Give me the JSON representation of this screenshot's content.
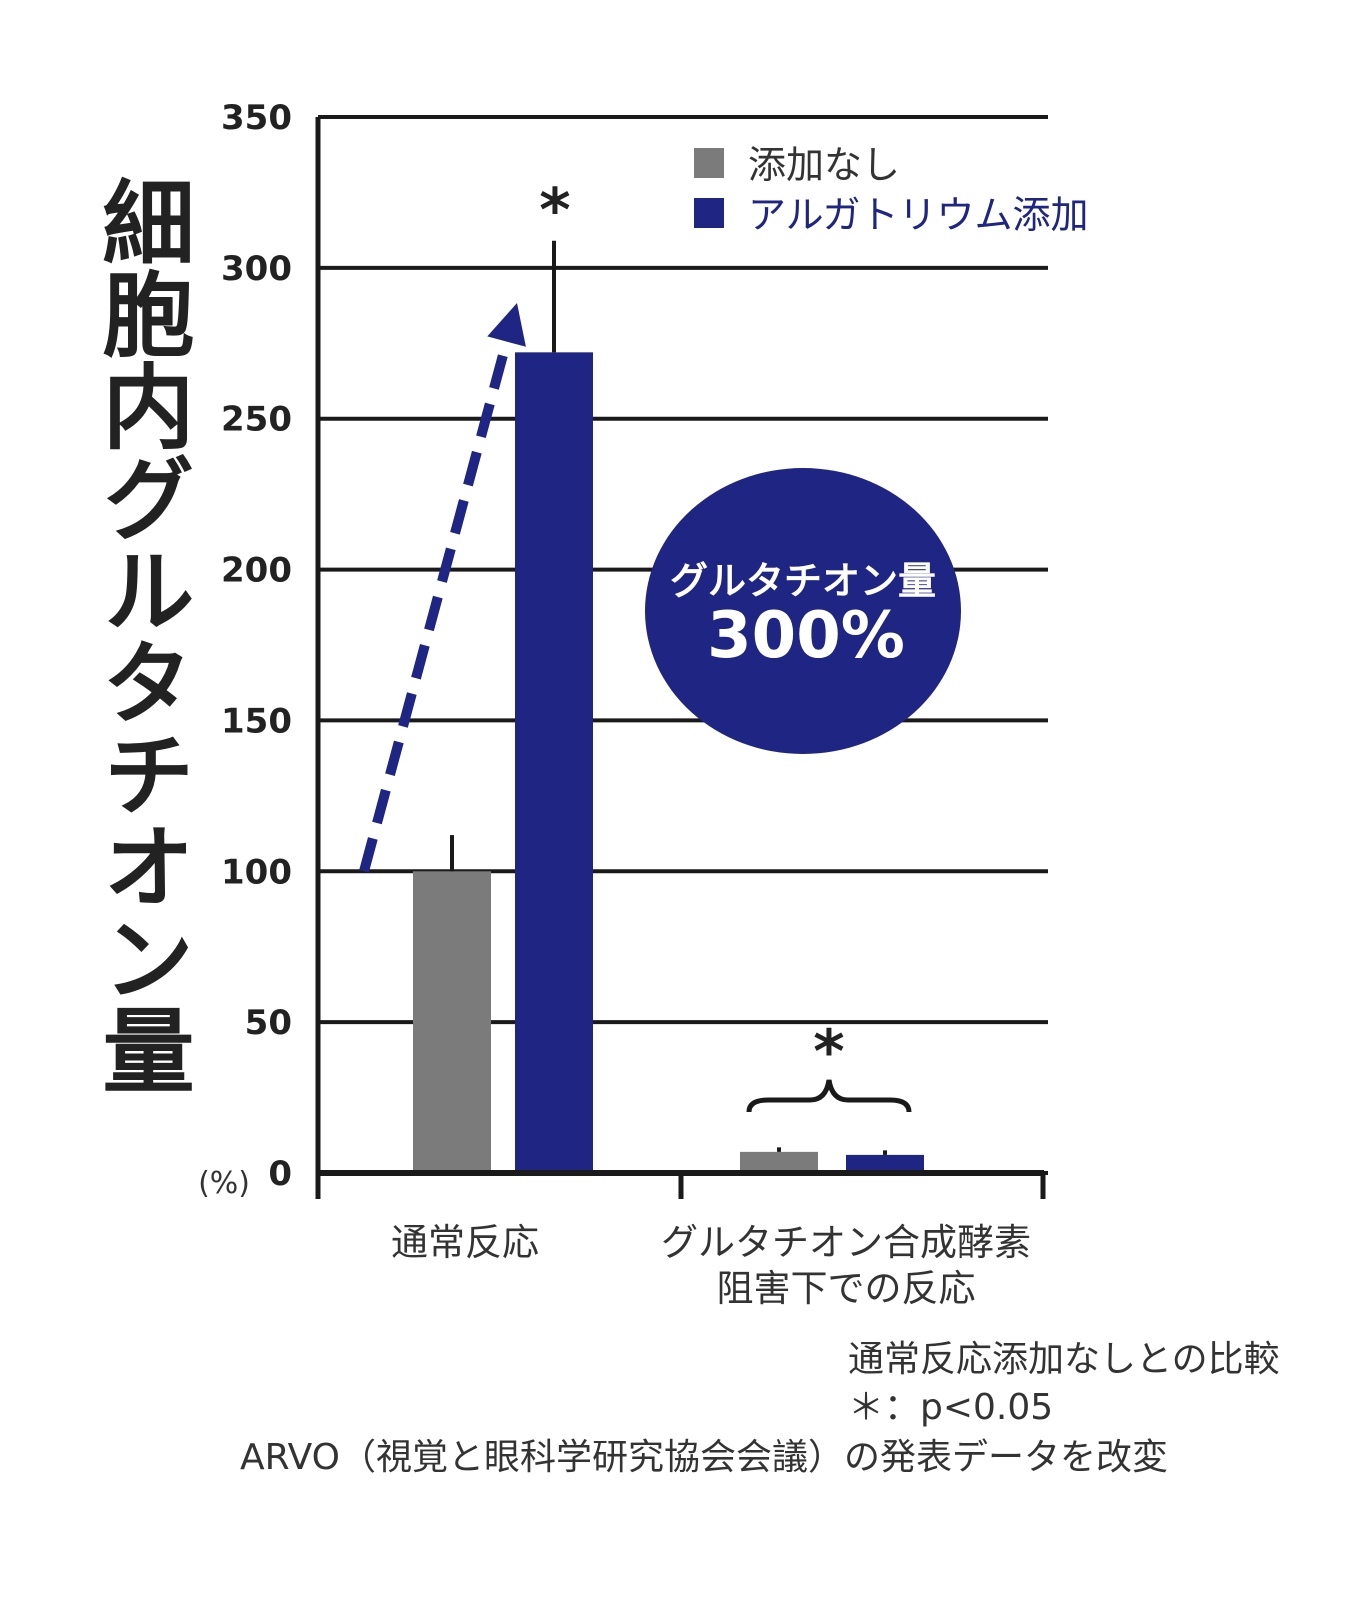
{
  "chart_data": {
    "type": "bar",
    "ylabel": "細胞内グルタチオン量",
    "unit_label": "(%)",
    "ylim": [
      0,
      350
    ],
    "yticks": [
      0,
      50,
      100,
      150,
      200,
      250,
      300,
      350
    ],
    "grid": true,
    "categories": [
      "通常反応",
      "グルタチオン合成酵素\n阻害下での反応"
    ],
    "series": [
      {
        "name": "添加なし",
        "color": "#7b7b7b",
        "values": [
          100,
          7
        ],
        "errors": [
          12,
          1.5
        ]
      },
      {
        "name": "アルガトリウム添加",
        "color": "#1f2583",
        "values": [
          272,
          6
        ],
        "errors": [
          37,
          1.5
        ]
      }
    ],
    "legend_position": "top-right",
    "significance_marks": [
      "*",
      "*"
    ],
    "highlight": {
      "line1": "グルタチオン量",
      "line2": "300%",
      "color": "#1f2583"
    },
    "arrow": {
      "color": "#1f2583",
      "from": 100,
      "to": 295
    }
  },
  "notes": {
    "comparison": "通常反応添加なしとの比較",
    "pvalue": "＊：p<0.05",
    "source": "ARVO（視覚と眼科学研究協会会議）の発表データを改変"
  }
}
